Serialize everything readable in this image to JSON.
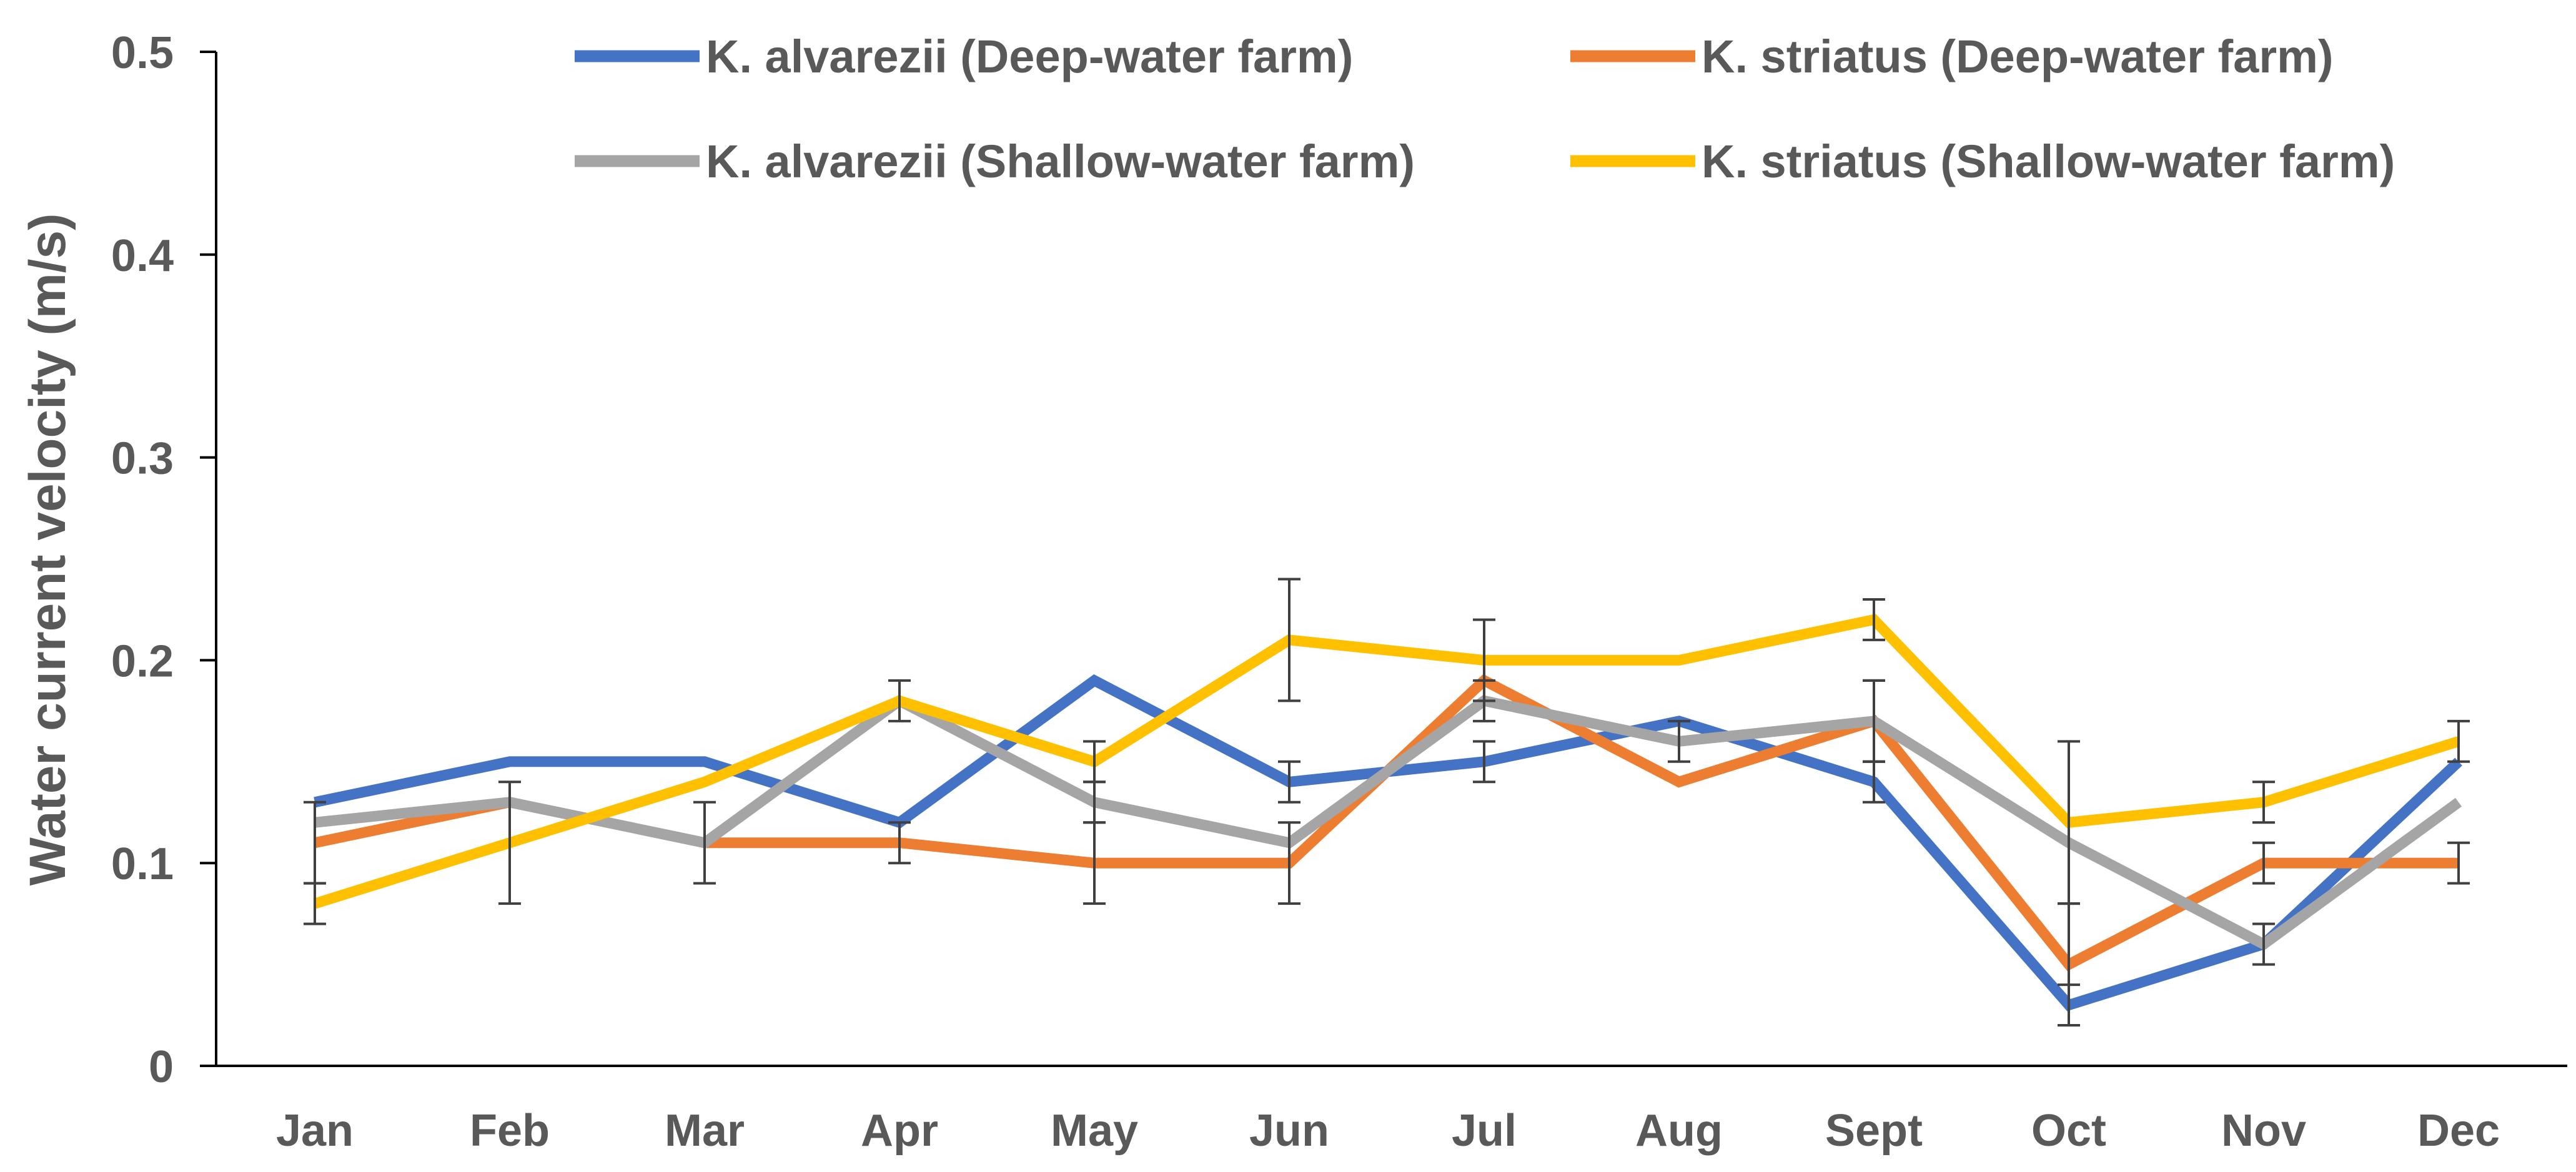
{
  "chart_data": {
    "type": "line",
    "title": "",
    "xlabel": "",
    "ylabel": "Water current velocity (m/s)",
    "ylim": [
      0,
      0.5
    ],
    "yticks": [
      "0",
      "0.1",
      "0.2",
      "0.3",
      "0.4",
      "0.5"
    ],
    "ytick_values": [
      0,
      0.1,
      0.2,
      0.3,
      0.4,
      0.5
    ],
    "categories": [
      "Jan",
      "Feb",
      "Mar",
      "Apr",
      "May",
      "Jun",
      "Jul",
      "Aug",
      "Sept",
      "Oct",
      "Nov",
      "Dec"
    ],
    "legend_position": "top",
    "series": [
      {
        "name": "K. alvarezii (Deep-water farm)",
        "color": "#4472C4",
        "values": [
          0.13,
          0.15,
          0.15,
          0.12,
          0.19,
          0.14,
          0.15,
          0.17,
          0.14,
          0.03,
          0.06,
          0.15
        ],
        "errors": [
          null,
          null,
          null,
          null,
          null,
          0.01,
          0.01,
          null,
          0.01,
          0.01,
          0.01,
          null
        ]
      },
      {
        "name": "K. striatus (Deep-water farm)",
        "color": "#ED7D31",
        "values": [
          0.11,
          0.13,
          0.11,
          0.11,
          0.1,
          0.1,
          0.19,
          0.14,
          0.17,
          0.05,
          0.1,
          0.1
        ],
        "errors": [
          0.02,
          null,
          0.02,
          0.01,
          0.02,
          0.02,
          null,
          null,
          0.02,
          0.03,
          0.01,
          0.01
        ]
      },
      {
        "name": "K. alvarezii (Shallow-water farm)",
        "color": "#A5A5A5",
        "values": [
          0.12,
          0.13,
          0.11,
          0.18,
          0.13,
          0.11,
          0.18,
          0.16,
          0.17,
          0.11,
          0.06,
          0.13
        ],
        "errors": [
          null,
          null,
          null,
          null,
          0.01,
          null,
          0.01,
          0.01,
          0.02,
          null,
          null,
          null
        ]
      },
      {
        "name": "K. striatus (Shallow-water farm)",
        "color": "#FFC000",
        "values": [
          0.08,
          0.11,
          0.14,
          0.18,
          0.15,
          0.21,
          0.2,
          0.2,
          0.22,
          0.12,
          0.13,
          0.16
        ],
        "errors": [
          0.01,
          0.03,
          null,
          0.01,
          0.01,
          0.03,
          0.02,
          null,
          0.01,
          0.04,
          0.01,
          0.01
        ]
      }
    ]
  }
}
